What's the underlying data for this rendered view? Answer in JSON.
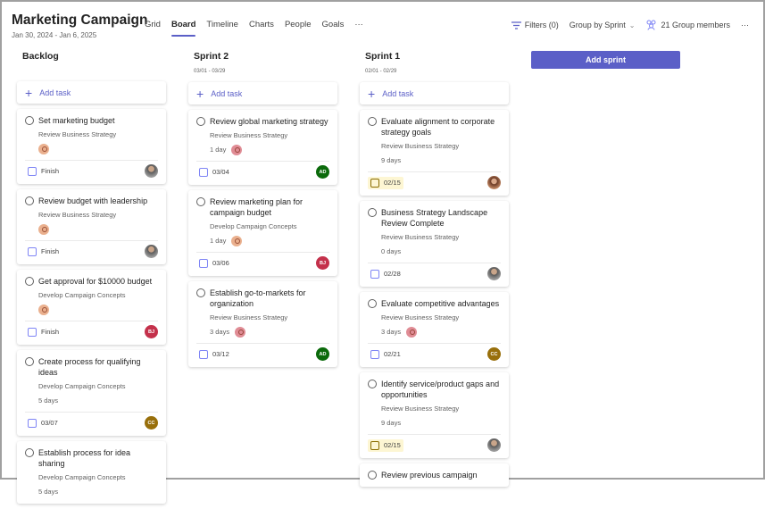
{
  "header": {
    "title": "Marketing Campaign",
    "dates": "Jan 30, 2024 - Jan 6, 2025",
    "tabs": [
      {
        "label": "Grid"
      },
      {
        "label": "Board",
        "active": true
      },
      {
        "label": "Timeline"
      },
      {
        "label": "Charts"
      },
      {
        "label": "People"
      },
      {
        "label": "Goals"
      },
      {
        "label": "···"
      }
    ],
    "filters": "Filters (0)",
    "group_by": "Group by Sprint",
    "members": "21 Group members",
    "more": "···"
  },
  "add_sprint": "Add sprint",
  "colors": {
    "accent": "#5b5fc7",
    "AD": "#0b6a0b",
    "BJ": "#c4314b",
    "CC": "#986f0b",
    "goal_peach": "#eab08e",
    "goal_pink": "#e08c95"
  },
  "columns": [
    {
      "name": "Backlog",
      "dates": "",
      "add": "Add task",
      "cards": [
        {
          "title": "Set marketing budget",
          "bucket": "Review Business Strategy",
          "duration": "",
          "goal": "peach",
          "due": "Finish",
          "late": false,
          "avatar": "photo",
          "initials": ""
        },
        {
          "title": "Review budget with leadership",
          "bucket": "Review Business Strategy",
          "duration": "",
          "goal": "peach",
          "due": "Finish",
          "late": false,
          "avatar": "photo",
          "initials": ""
        },
        {
          "title": "Get approval for $10000 budget",
          "bucket": "Develop Campaign Concepts",
          "duration": "",
          "goal": "peach",
          "due": "Finish",
          "late": false,
          "avatar": "BJ",
          "initials": "BJ"
        },
        {
          "title": "Create process for qualifying ideas",
          "bucket": "Develop Campaign Concepts",
          "duration": "5 days",
          "goal": "",
          "due": "03/07",
          "late": false,
          "avatar": "CC",
          "initials": "CC"
        },
        {
          "title": "Establish process for idea sharing",
          "bucket": "Develop Campaign Concepts",
          "duration": "5 days",
          "goal": "",
          "due": "",
          "late": false,
          "avatar": "",
          "initials": ""
        }
      ]
    },
    {
      "name": "Sprint 2",
      "dates": "03/01 - 03/29",
      "add": "Add task",
      "cards": [
        {
          "title": "Review global marketing strategy",
          "bucket": "Review Business Strategy",
          "duration": "1 day",
          "goal": "pink",
          "due": "03/04",
          "late": false,
          "avatar": "AD",
          "initials": "AD"
        },
        {
          "title": "Review marketing plan for campaign budget",
          "bucket": "Develop Campaign Concepts",
          "duration": "1 day",
          "goal": "peach",
          "due": "03/06",
          "late": false,
          "avatar": "BJ",
          "initials": "BJ"
        },
        {
          "title": "Establish go-to-markets for organization",
          "bucket": "Review Business Strategy",
          "duration": "3 days",
          "goal": "pink",
          "due": "03/12",
          "late": false,
          "avatar": "AD",
          "initials": "AD"
        }
      ]
    },
    {
      "name": "Sprint 1",
      "dates": "02/01 - 02/29",
      "add": "Add task",
      "cards": [
        {
          "title": "Evaluate alignment to corporate strategy goals",
          "bucket": "Review Business Strategy",
          "duration": "9 days",
          "goal": "",
          "due": "02/15",
          "late": true,
          "avatar": "photo2",
          "initials": ""
        },
        {
          "title": "Business Strategy Landscape Review Complete",
          "bucket": "Review Business Strategy",
          "duration": "0 days",
          "goal": "",
          "due": "02/28",
          "late": false,
          "avatar": "photo",
          "initials": ""
        },
        {
          "title": "Evaluate competitive advantages",
          "bucket": "Review Business Strategy",
          "duration": "3 days",
          "goal": "pink",
          "due": "02/21",
          "late": false,
          "avatar": "CC",
          "initials": "CC"
        },
        {
          "title": "Identify service/product gaps and opportunities",
          "bucket": "Review Business Strategy",
          "duration": "9 days",
          "goal": "",
          "due": "02/15",
          "late": true,
          "avatar": "photo",
          "initials": ""
        },
        {
          "title": "Review previous campaign",
          "bucket": "",
          "duration": "",
          "goal": "",
          "due": "",
          "late": false,
          "avatar": "",
          "initials": ""
        }
      ]
    }
  ]
}
